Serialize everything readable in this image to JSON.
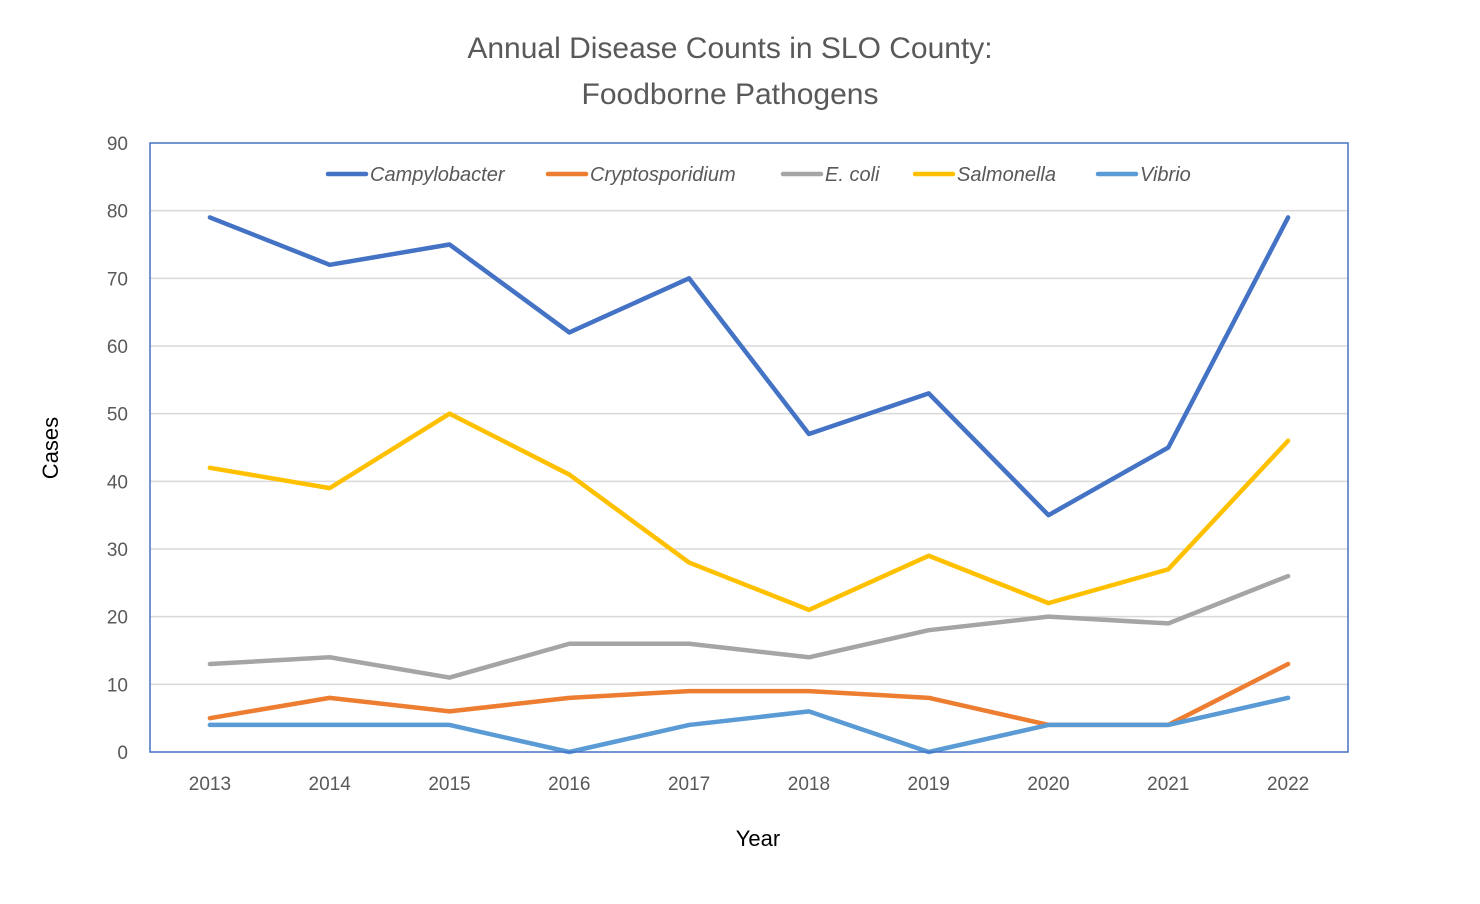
{
  "chart_data": {
    "type": "line",
    "title": [
      "Annual Disease Counts in SLO County:",
      "Foodborne Pathogens"
    ],
    "xlabel": "Year",
    "ylabel": "Cases",
    "ylim": [
      0,
      90
    ],
    "yticks": [
      0,
      10,
      20,
      30,
      40,
      50,
      60,
      70,
      80,
      90
    ],
    "grid": true,
    "legend_position": "top",
    "categories": [
      "2013",
      "2014",
      "2015",
      "2016",
      "2017",
      "2018",
      "2019",
      "2020",
      "2021",
      "2022"
    ],
    "series": [
      {
        "name": "Campylobacter",
        "color": "#4472C4",
        "values": [
          79,
          72,
          75,
          62,
          70,
          47,
          53,
          35,
          45,
          79
        ]
      },
      {
        "name": "Cryptosporidium",
        "color": "#ED7D31",
        "values": [
          5,
          8,
          6,
          8,
          9,
          9,
          8,
          4,
          4,
          13
        ]
      },
      {
        "name": "E. coli",
        "color": "#A5A5A5",
        "values": [
          13,
          14,
          11,
          16,
          16,
          14,
          18,
          20,
          19,
          26
        ]
      },
      {
        "name": "Salmonella",
        "color": "#FFC000",
        "values": [
          42,
          39,
          50,
          41,
          28,
          21,
          29,
          22,
          27,
          46
        ]
      },
      {
        "name": "Vibrio",
        "color": "#5B9BD5",
        "values": [
          4,
          4,
          4,
          0,
          4,
          6,
          0,
          4,
          4,
          8
        ]
      }
    ]
  }
}
